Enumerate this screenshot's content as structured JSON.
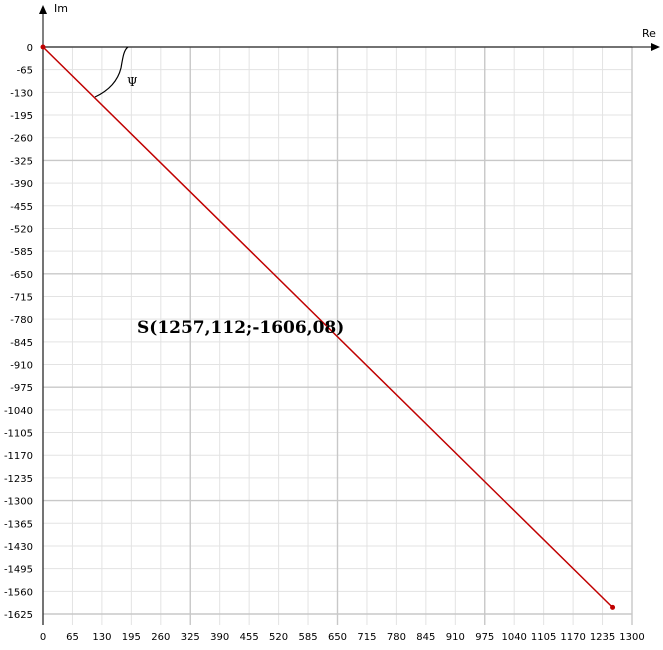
{
  "chart_data": {
    "type": "line",
    "xlabel": "Re",
    "ylabel": "Im",
    "xlim": [
      0,
      1300
    ],
    "ylim": [
      -1625,
      0
    ],
    "x_ticks": [
      "0",
      "65",
      "130",
      "195",
      "260",
      "325",
      "390",
      "455",
      "520",
      "585",
      "650",
      "715",
      "780",
      "845",
      "910",
      "975",
      "1040",
      "1105",
      "1170",
      "1235",
      "1300"
    ],
    "y_ticks": [
      "0",
      "-65",
      "-130",
      "-195",
      "-260",
      "-325",
      "-390",
      "-455",
      "-520",
      "-585",
      "-650",
      "-715",
      "-780",
      "-845",
      "-910",
      "-975",
      "-1040",
      "-1105",
      "-1170",
      "-1235",
      "-1300",
      "-1365",
      "-1430",
      "-1495",
      "-1560",
      "-1625"
    ],
    "grid": true,
    "series": [
      {
        "x": [
          0,
          1257.112
        ],
        "y": [
          0,
          -1606.08
        ],
        "color": "#c00000"
      }
    ],
    "point": {
      "x": 1257.112,
      "y": -1606.08
    },
    "annotations": {
      "point_label": "S(1257,112;-1606,08)",
      "angle_label": "Ψ"
    }
  }
}
